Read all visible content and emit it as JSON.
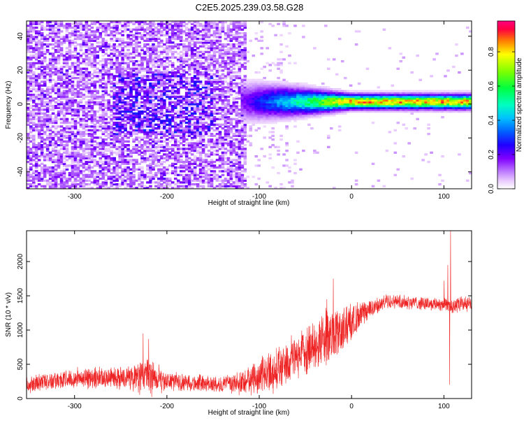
{
  "figure_title": "C2E5.2025.239.03.58.G28",
  "chart_data": [
    {
      "type": "heatmap",
      "xlabel": "Height of straight line (km)",
      "ylabel": "Frequency (Hz)",
      "xlim": [
        -352,
        130
      ],
      "ylim": [
        -50,
        49
      ],
      "xticks": [
        -300,
        -200,
        -100,
        0,
        100
      ],
      "xtick_labels": [
        "-300",
        "-200",
        "-100",
        "0",
        "100"
      ],
      "yticks": [
        -40,
        -20,
        0,
        20,
        40
      ],
      "ytick_labels": [
        "-40",
        "-20",
        "0",
        "20",
        "40"
      ],
      "colorbar": {
        "label": "Normalized spectral amplitude",
        "range": [
          0,
          0.98
        ],
        "ticks": [
          0.0,
          0.2,
          0.4,
          0.6,
          0.8
        ],
        "tick_labels": [
          "0.0",
          "0.2",
          "0.4",
          "0.6",
          "0.8"
        ],
        "colors": [
          "#ffffff",
          "#c080ff",
          "#8000ff",
          "#0000ff",
          "#00a0ff",
          "#00ffd0",
          "#00ff40",
          "#80ff00",
          "#ffff00",
          "#ff8000",
          "#ff0040",
          "#ff0080"
        ]
      },
      "signal": {
        "noise_region_x": [
          -352,
          -115
        ],
        "strong_noise_x": [
          -260,
          -150
        ],
        "band_start_x": -120,
        "band_center_freq": 1.5,
        "band_peak_amplitude": 0.95
      }
    },
    {
      "type": "line",
      "xlabel": "Height of straight line (km)",
      "ylabel": "SNR (10 * v/v)",
      "xlim": [
        -352,
        130
      ],
      "ylim": [
        0,
        2450
      ],
      "xticks": [
        -300,
        -200,
        -100,
        0,
        100
      ],
      "xtick_labels": [
        "-300",
        "-200",
        "-100",
        "0",
        "100"
      ],
      "yticks": [
        0,
        500,
        1000,
        1500,
        2000
      ],
      "ytick_labels": [
        "0",
        "500",
        "1000",
        "1500",
        "2000"
      ],
      "line_color": "#ee2222",
      "envelope": {
        "x": [
          -352,
          -300,
          -240,
          -220,
          -200,
          -160,
          -140,
          -120,
          -100,
          -80,
          -60,
          -40,
          -25,
          -15,
          0,
          20,
          40,
          70,
          100,
          110,
          130
        ],
        "mean": [
          220,
          300,
          300,
          330,
          250,
          220,
          200,
          230,
          330,
          450,
          600,
          780,
          900,
          950,
          1100,
          1300,
          1430,
          1400,
          1380,
          1350,
          1400
        ],
        "spread": [
          120,
          130,
          160,
          250,
          130,
          120,
          110,
          160,
          250,
          300,
          320,
          330,
          400,
          380,
          250,
          130,
          100,
          90,
          110,
          120,
          110
        ]
      },
      "spikes": [
        {
          "x": -226,
          "y": 950
        },
        {
          "x": -220,
          "y": 870
        },
        {
          "x": -27,
          "y": 1450
        },
        {
          "x": -20,
          "y": 1750
        },
        {
          "x": 100,
          "y": 1720
        },
        {
          "x": 104,
          "y": 1950
        },
        {
          "x": 107,
          "y": 2450
        },
        {
          "x": 106,
          "y": 200
        }
      ]
    }
  ]
}
